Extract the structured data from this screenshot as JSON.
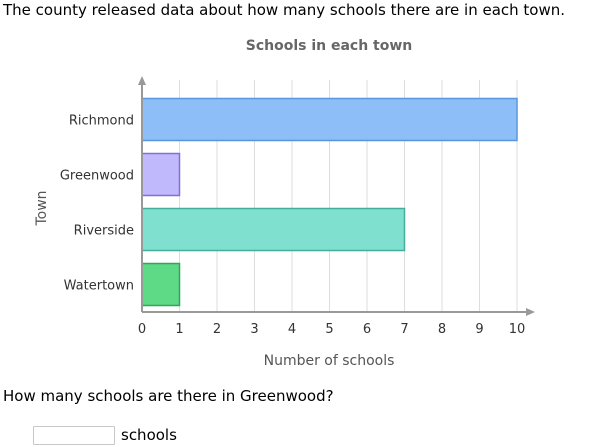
{
  "intro_text": "The county released data about how many schools there are in each town.",
  "question_text": "How many schools are there in Greenwood?",
  "answer": {
    "value": "",
    "unit_label": "schools"
  },
  "chart_data": {
    "type": "bar",
    "orientation": "horizontal",
    "title": "Schools in each town",
    "xlabel": "Number of schools",
    "ylabel": "Town",
    "categories": [
      "Richmond",
      "Greenwood",
      "Riverside",
      "Watertown"
    ],
    "values": [
      10,
      1,
      7,
      1
    ],
    "xlim": [
      0,
      10
    ],
    "x_ticks": [
      0,
      1,
      2,
      3,
      4,
      5,
      6,
      7,
      8,
      9,
      10
    ],
    "grid": true,
    "colors": [
      {
        "fill": "#8dbef8",
        "stroke": "#5a96dc"
      },
      {
        "fill": "#c0b9fb",
        "stroke": "#7c70e0"
      },
      {
        "fill": "#7fe0d0",
        "stroke": "#44ad9c"
      },
      {
        "fill": "#5ed986",
        "stroke": "#2fa65a"
      }
    ],
    "axis_color": "#999999",
    "grid_color": "#dddddd",
    "title_color": "#666666",
    "label_color": "#555555"
  }
}
